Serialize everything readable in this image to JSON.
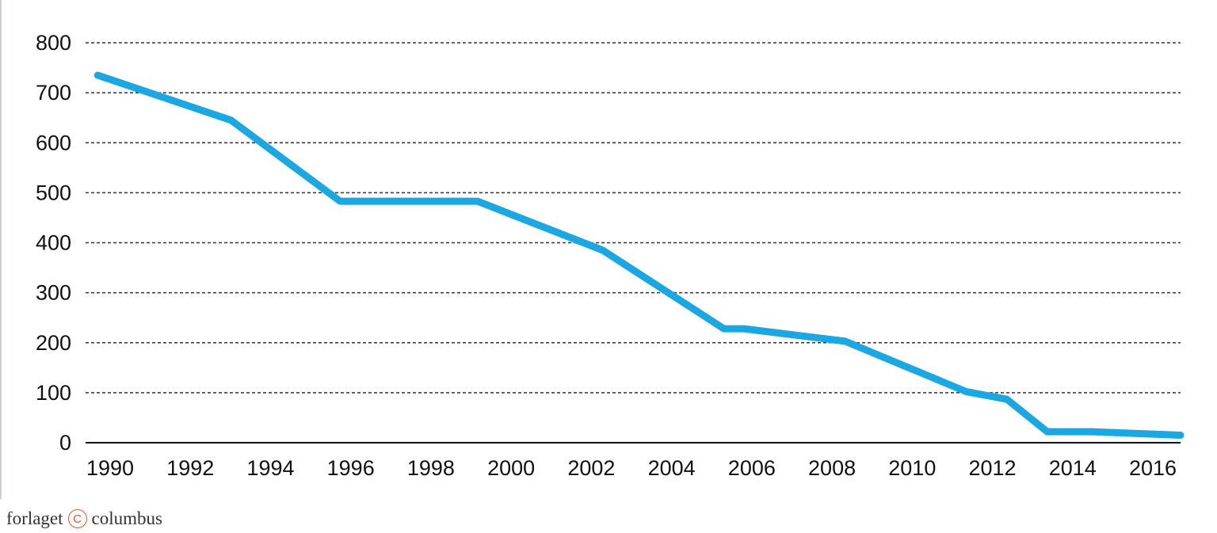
{
  "chart_data": {
    "type": "line",
    "title": "",
    "xlabel": "",
    "ylabel": "",
    "x": [
      1990,
      1993.3,
      1996,
      1999.4,
      2002.5,
      2005.5,
      2006,
      2008.5,
      2011.5,
      2012.5,
      2013.5,
      2014.6,
      2016.8
    ],
    "series": [
      {
        "values": [
          735,
          645,
          483,
          483,
          385,
          228,
          228,
          203,
          102,
          87,
          22,
          22,
          15
        ]
      }
    ],
    "xticks": [
      "1990",
      "1992",
      "1994",
      "1996",
      "1998",
      "2000",
      "2002",
      "2004",
      "2006",
      "2008",
      "2010",
      "2012",
      "2014",
      "2016"
    ],
    "yticks": [
      "0",
      "100",
      "200",
      "300",
      "400",
      "500",
      "600",
      "700",
      "800"
    ],
    "xlim": [
      1989.7,
      2016.8
    ],
    "ylim": [
      0,
      800
    ],
    "grid": true,
    "line_color": "#1aa7e2"
  },
  "footer": {
    "brand_left": "forlaget",
    "brand_mark": "C",
    "brand_right": "columbus"
  }
}
